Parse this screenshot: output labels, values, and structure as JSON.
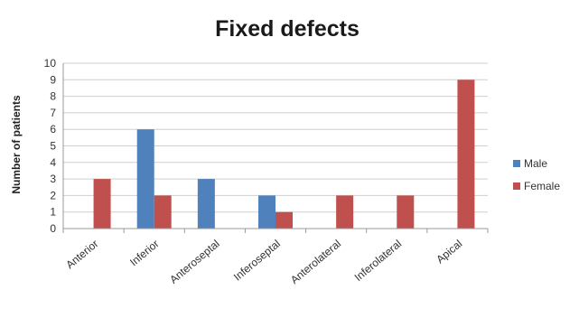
{
  "chart_data": {
    "type": "bar",
    "title": "Fixed defects",
    "xlabel": "",
    "ylabel": "Number of patients",
    "ylim": [
      0,
      10
    ],
    "yticks": [
      0,
      1,
      2,
      3,
      4,
      5,
      6,
      7,
      8,
      9,
      10
    ],
    "grid": true,
    "legend_position": "right",
    "categories": [
      "Anterior",
      "Inferior",
      "Anteroseptal",
      "Inferoseptal",
      "Anterolateral",
      "Inferolateral",
      "Apical"
    ],
    "series": [
      {
        "name": "Male",
        "color": "#4F81BD",
        "values": [
          0,
          6,
          3,
          2,
          0,
          0,
          0
        ]
      },
      {
        "name": "Female",
        "color": "#C0504D",
        "values": [
          3,
          2,
          0,
          1,
          2,
          2,
          9
        ]
      }
    ]
  }
}
